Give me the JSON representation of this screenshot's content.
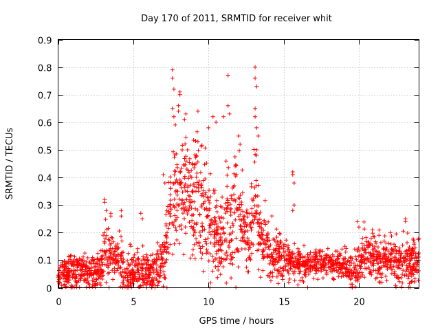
{
  "chart_data": {
    "type": "scatter",
    "title": "Day 170 of 2011, SRMTID for receiver whit",
    "xlabel": "GPS time / hours",
    "ylabel": "SRMTID / TECUs",
    "xlim": [
      0,
      24
    ],
    "ylim": [
      0,
      0.9
    ],
    "xticks": [
      0,
      5,
      10,
      15,
      20
    ],
    "xtick_labels": [
      "0",
      "5",
      "10",
      "15",
      "20"
    ],
    "yticks": [
      0,
      0.1,
      0.2,
      0.3,
      0.4,
      0.5,
      0.6,
      0.7,
      0.8,
      0.9
    ],
    "ytick_labels": [
      "0",
      "0.1",
      "0.2",
      "0.3",
      "0.4",
      "0.5",
      "0.6",
      "0.7",
      "0.8",
      "0.9"
    ],
    "grid": true,
    "marker": "+",
    "series": [
      {
        "name": "SRMTID",
        "color": "#ff0000",
        "profile_hours": [
          0,
          1,
          2,
          2.8,
          3.1,
          3.6,
          4.2,
          4.5,
          5,
          5.6,
          6.3,
          7,
          7.4,
          7.7,
          8.2,
          8.8,
          9.2,
          9.8,
          10.3,
          10.6,
          11.1,
          11.5,
          12,
          12.4,
          12.8,
          13.1,
          13.4,
          14,
          15,
          15.5,
          15.8,
          16.3,
          17,
          18,
          19,
          19.6,
          20.2,
          21,
          22,
          23,
          24
        ],
        "profile_center": [
          0.05,
          0.06,
          0.06,
          0.06,
          0.13,
          0.11,
          0.1,
          0.04,
          0.06,
          0.05,
          0.05,
          0.08,
          0.25,
          0.33,
          0.36,
          0.33,
          0.36,
          0.27,
          0.22,
          0.17,
          0.2,
          0.24,
          0.3,
          0.18,
          0.2,
          0.3,
          0.2,
          0.12,
          0.1,
          0.1,
          0.09,
          0.08,
          0.09,
          0.09,
          0.08,
          0.05,
          0.11,
          0.11,
          0.1,
          0.09,
          0.09
        ],
        "profile_spread": [
          0.03,
          0.04,
          0.04,
          0.04,
          0.07,
          0.05,
          0.05,
          0.04,
          0.05,
          0.04,
          0.04,
          0.06,
          0.11,
          0.14,
          0.14,
          0.12,
          0.13,
          0.11,
          0.11,
          0.08,
          0.11,
          0.13,
          0.13,
          0.07,
          0.08,
          0.12,
          0.08,
          0.05,
          0.04,
          0.04,
          0.03,
          0.03,
          0.03,
          0.03,
          0.03,
          0.04,
          0.05,
          0.05,
          0.04,
          0.05,
          0.05
        ],
        "sample_count": 2200,
        "spikes": [
          {
            "x": 3.1,
            "y": 0.32
          },
          {
            "x": 3.1,
            "y": 0.31
          },
          {
            "x": 3.2,
            "y": 0.28
          },
          {
            "x": 3.5,
            "y": 0.27
          },
          {
            "x": 3.5,
            "y": 0.26
          },
          {
            "x": 4.2,
            "y": 0.28
          },
          {
            "x": 4.2,
            "y": 0.26
          },
          {
            "x": 5.5,
            "y": 0.27
          },
          {
            "x": 5.6,
            "y": 0.25
          },
          {
            "x": 7.0,
            "y": 0.41
          },
          {
            "x": 7.1,
            "y": 0.38
          },
          {
            "x": 7.6,
            "y": 0.79
          },
          {
            "x": 7.6,
            "y": 0.76
          },
          {
            "x": 7.7,
            "y": 0.72
          },
          {
            "x": 7.6,
            "y": 0.65
          },
          {
            "x": 7.7,
            "y": 0.62
          },
          {
            "x": 7.8,
            "y": 0.59
          },
          {
            "x": 8.1,
            "y": 0.71
          },
          {
            "x": 8.1,
            "y": 0.7
          },
          {
            "x": 8.0,
            "y": 0.66
          },
          {
            "x": 8.0,
            "y": 0.64
          },
          {
            "x": 8.4,
            "y": 0.61
          },
          {
            "x": 8.5,
            "y": 0.63
          },
          {
            "x": 9.3,
            "y": 0.64
          },
          {
            "x": 9.3,
            "y": 0.53
          },
          {
            "x": 10.0,
            "y": 0.58
          },
          {
            "x": 10.3,
            "y": 0.62
          },
          {
            "x": 10.5,
            "y": 0.6
          },
          {
            "x": 11.0,
            "y": 0.62
          },
          {
            "x": 11.3,
            "y": 0.77
          },
          {
            "x": 11.3,
            "y": 0.66
          },
          {
            "x": 11.4,
            "y": 0.63
          },
          {
            "x": 12.0,
            "y": 0.55
          },
          {
            "x": 12.1,
            "y": 0.52
          },
          {
            "x": 13.1,
            "y": 0.8
          },
          {
            "x": 13.1,
            "y": 0.76
          },
          {
            "x": 13.2,
            "y": 0.73
          },
          {
            "x": 13.1,
            "y": 0.65
          },
          {
            "x": 13.1,
            "y": 0.62
          },
          {
            "x": 13.2,
            "y": 0.58
          },
          {
            "x": 13.3,
            "y": 0.55
          },
          {
            "x": 13.2,
            "y": 0.5
          },
          {
            "x": 13.2,
            "y": 0.48
          },
          {
            "x": 15.6,
            "y": 0.42
          },
          {
            "x": 15.6,
            "y": 0.41
          },
          {
            "x": 15.7,
            "y": 0.38
          },
          {
            "x": 15.7,
            "y": 0.3
          },
          {
            "x": 15.6,
            "y": 0.28
          },
          {
            "x": 19.9,
            "y": 0.24
          },
          {
            "x": 20.0,
            "y": 0.22
          },
          {
            "x": 20.9,
            "y": 0.21
          },
          {
            "x": 22.1,
            "y": 0.2
          },
          {
            "x": 23.1,
            "y": 0.25
          },
          {
            "x": 23.1,
            "y": 0.24
          },
          {
            "x": 4.6,
            "y": 0.0
          },
          {
            "x": 10.1,
            "y": 0.0
          }
        ]
      }
    ]
  }
}
